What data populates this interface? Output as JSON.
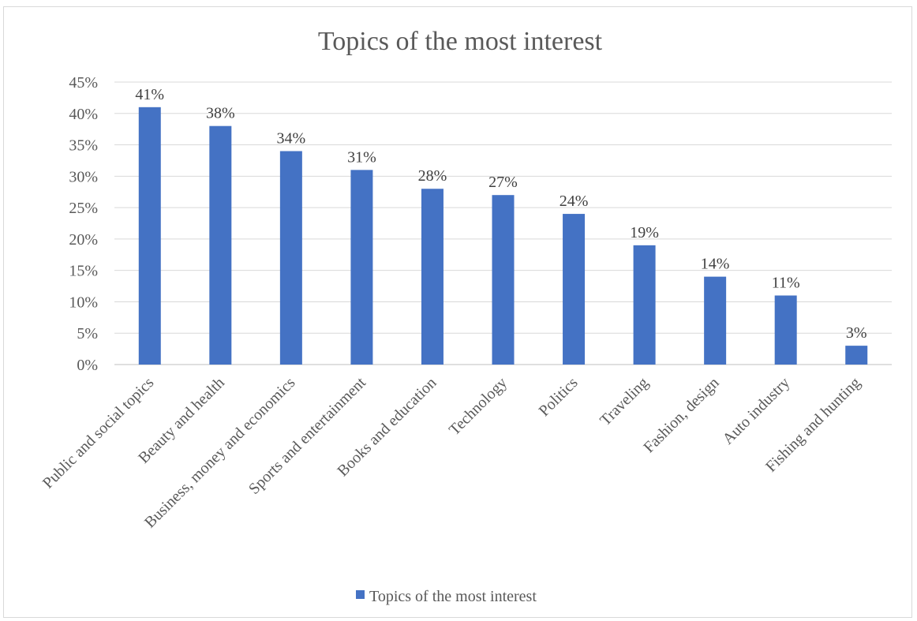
{
  "chart_data": {
    "type": "bar",
    "title": "Topics of the most interest",
    "categories": [
      "Public and social topics",
      "Beauty and health",
      "Business, money and economics",
      "Sports and entertainment",
      "Books and education",
      "Technology",
      "Politics",
      "Traveling",
      "Fashion, design",
      "Auto industry",
      "Fishing and hunting"
    ],
    "series": [
      {
        "name": "Topics of the most interest",
        "values": [
          41,
          38,
          34,
          31,
          28,
          27,
          24,
          19,
          14,
          11,
          3
        ],
        "labels": [
          "41%",
          "38%",
          "34%",
          "31%",
          "28%",
          "27%",
          "24%",
          "19%",
          "14%",
          "11%",
          "3%"
        ],
        "color": "#4472c4"
      }
    ],
    "ylim": [
      0,
      45
    ],
    "yticks": [
      "0%",
      "5%",
      "10%",
      "15%",
      "20%",
      "25%",
      "30%",
      "35%",
      "40%",
      "45%"
    ],
    "grid": true,
    "legend_position": "bottom"
  }
}
